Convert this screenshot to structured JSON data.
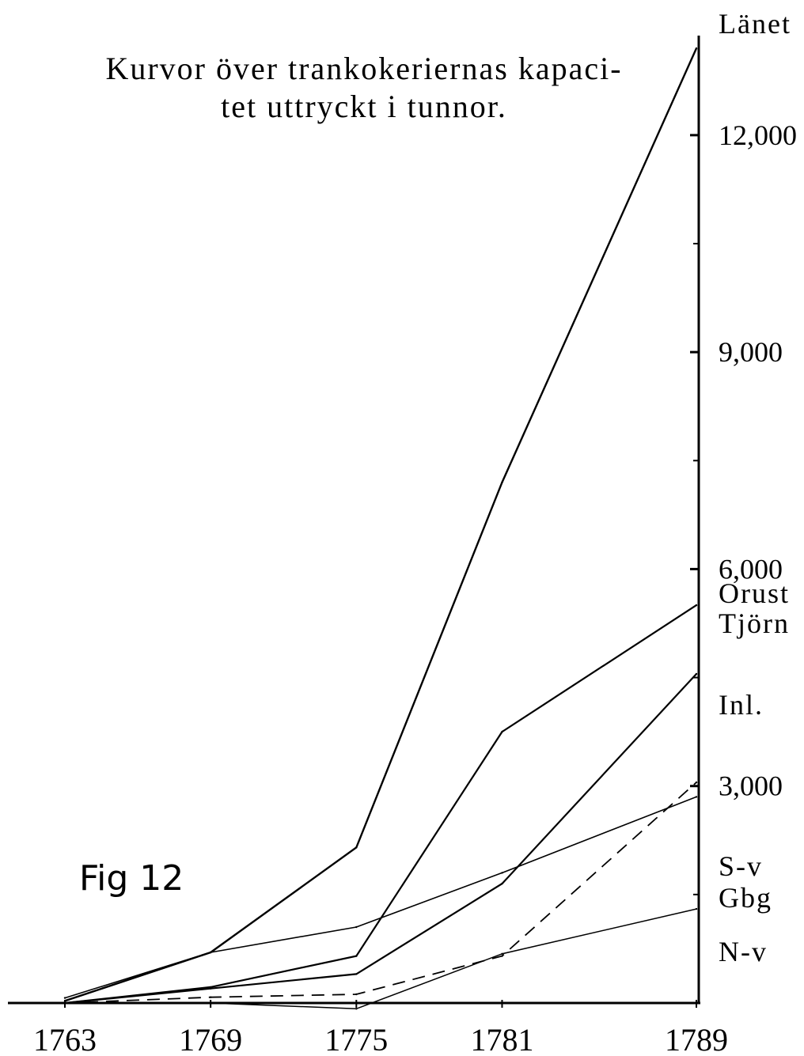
{
  "figure_label": "Fig 12",
  "chart_data": {
    "type": "line",
    "title": "Kurvor över trankokeriernas kapaci-tet uttryckt i tunnor.",
    "title_lines": [
      "Kurvor över trankokeriernas kapaci-",
      "tet uttryckt i tunnor."
    ],
    "xlabel": "",
    "ylabel": "",
    "x": [
      1763,
      1769,
      1775,
      1781,
      1789
    ],
    "x_tick_labels": [
      "1763",
      "1769",
      "1775",
      "1781",
      "1789"
    ],
    "y_ticks": [
      3000,
      6000,
      9000,
      12000
    ],
    "y_tick_labels": [
      "3,000",
      "6,000",
      "9,000",
      "12,000"
    ],
    "ylim": [
      0,
      13300
    ],
    "grid": false,
    "axis_side": "right",
    "series": [
      {
        "name": "Länet",
        "dash": false,
        "width": 2.4,
        "values": [
          30,
          700,
          2150,
          7200,
          13200
        ]
      },
      {
        "name": "Orust Tjörn",
        "dash": false,
        "width": 2.2,
        "values": [
          0,
          220,
          650,
          3750,
          5500
        ]
      },
      {
        "name": "Inl.",
        "dash": false,
        "width": 2.2,
        "values": [
          0,
          200,
          400,
          1650,
          4550
        ]
      },
      {
        "name": "S-v",
        "dash": true,
        "width": 1.8,
        "values": [
          0,
          80,
          120,
          650,
          3050
        ]
      },
      {
        "name": "Gbg",
        "dash": false,
        "width": 1.6,
        "values": [
          70,
          700,
          1050,
          1800,
          2850
        ]
      },
      {
        "name": "N-v",
        "dash": false,
        "width": 1.5,
        "values": [
          0,
          0,
          -80,
          680,
          1300
        ]
      }
    ],
    "series_labels": [
      "Länet",
      "Orust",
      "Tjörn",
      "Inl.",
      "S-v",
      "Gbg",
      "N-v"
    ]
  }
}
